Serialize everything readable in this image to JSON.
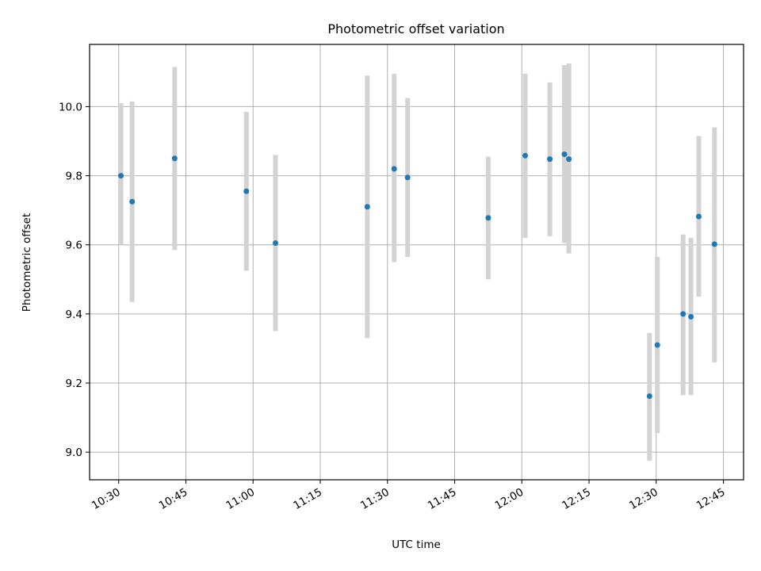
{
  "chart_data": {
    "type": "scatter",
    "title": "Photometric offset variation",
    "xlabel": "UTC time",
    "ylabel": "Photometric offset",
    "x_ticks": [
      "10:30",
      "10:45",
      "11:00",
      "11:15",
      "11:30",
      "11:45",
      "12:00",
      "12:15",
      "12:30",
      "12:45"
    ],
    "y_ticks": [
      "9.0",
      "9.2",
      "9.4",
      "9.6",
      "9.8",
      "10.0"
    ],
    "xlim": [
      "10:23:30",
      "12:49:30"
    ],
    "ylim": [
      8.92,
      10.18
    ],
    "grid": true,
    "errorbar_color": "#d3d3d3",
    "marker_color": "#1f77b4",
    "points": [
      {
        "x": "10:30:30",
        "y": 9.8,
        "ylow": 9.6,
        "yhigh": 10.01
      },
      {
        "x": "10:33:00",
        "y": 9.725,
        "ylow": 9.435,
        "yhigh": 10.015
      },
      {
        "x": "10:42:30",
        "y": 9.85,
        "ylow": 9.585,
        "yhigh": 10.115
      },
      {
        "x": "10:58:30",
        "y": 9.755,
        "ylow": 9.525,
        "yhigh": 9.985
      },
      {
        "x": "11:05:00",
        "y": 9.605,
        "ylow": 9.35,
        "yhigh": 9.86
      },
      {
        "x": "11:25:30",
        "y": 9.71,
        "ylow": 9.33,
        "yhigh": 10.09
      },
      {
        "x": "11:31:30",
        "y": 9.82,
        "ylow": 9.55,
        "yhigh": 10.095
      },
      {
        "x": "11:34:30",
        "y": 9.795,
        "ylow": 9.565,
        "yhigh": 10.025
      },
      {
        "x": "11:52:30",
        "y": 9.678,
        "ylow": 9.5,
        "yhigh": 9.855
      },
      {
        "x": "12:00:45",
        "y": 9.858,
        "ylow": 9.62,
        "yhigh": 10.095
      },
      {
        "x": "12:06:15",
        "y": 9.848,
        "ylow": 9.625,
        "yhigh": 10.07
      },
      {
        "x": "12:09:30",
        "y": 9.862,
        "ylow": 9.605,
        "yhigh": 10.12
      },
      {
        "x": "12:10:30",
        "y": 9.848,
        "ylow": 9.575,
        "yhigh": 10.125
      },
      {
        "x": "12:28:30",
        "y": 9.162,
        "ylow": 8.975,
        "yhigh": 9.345
      },
      {
        "x": "12:30:15",
        "y": 9.31,
        "ylow": 9.055,
        "yhigh": 9.565
      },
      {
        "x": "12:36:00",
        "y": 9.4,
        "ylow": 9.165,
        "yhigh": 9.63
      },
      {
        "x": "12:37:45",
        "y": 9.392,
        "ylow": 9.165,
        "yhigh": 9.62
      },
      {
        "x": "12:39:30",
        "y": 9.682,
        "ylow": 9.45,
        "yhigh": 9.915
      },
      {
        "x": "12:43:00",
        "y": 9.602,
        "ylow": 9.26,
        "yhigh": 9.94
      }
    ]
  }
}
